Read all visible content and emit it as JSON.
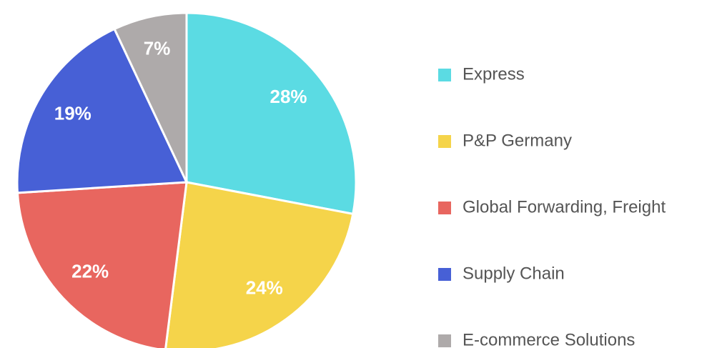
{
  "chart_data": {
    "type": "pie",
    "categories": [
      "Express",
      "P&P Germany",
      "Global Forwarding, Freight",
      "Supply Chain",
      "E-commerce Solutions"
    ],
    "values": [
      28,
      24,
      22,
      19,
      7
    ],
    "value_labels": [
      "28%",
      "24%",
      "22%",
      "19%",
      "7%"
    ],
    "colors": [
      "#5bdbe3",
      "#f5d44a",
      "#e8665f",
      "#4760d6",
      "#aeaaaa"
    ],
    "legend": "right"
  }
}
